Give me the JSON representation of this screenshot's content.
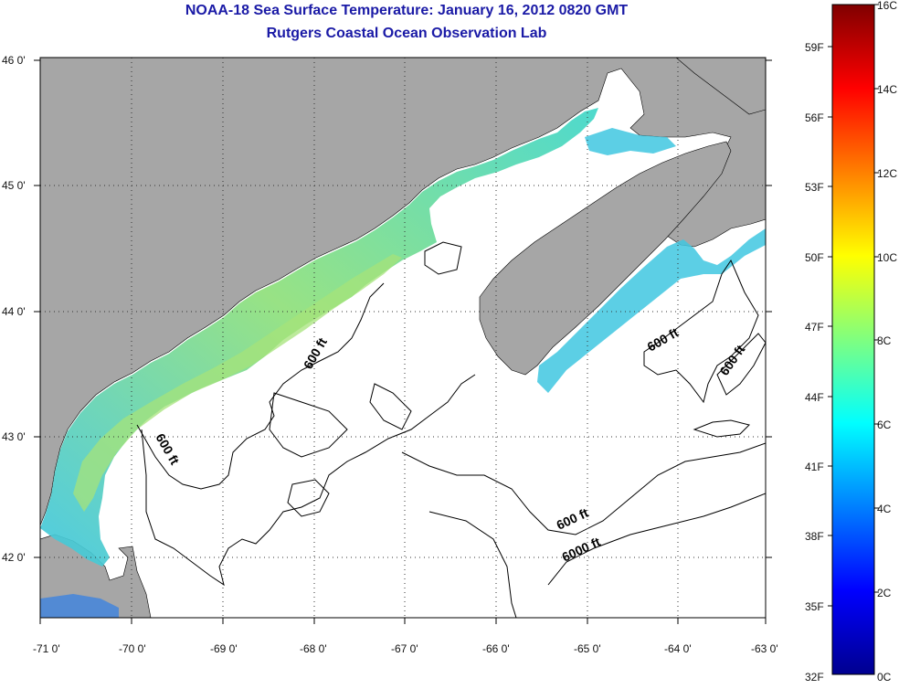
{
  "title": "NOAA-18 Sea Surface Temperature:  January 16, 2012 0820 GMT",
  "subtitle": "Rutgers Coastal Ocean Observation Lab",
  "axes": {
    "lon_ticks": [
      "-71 0'",
      "-70 0'",
      "-69 0'",
      "-68 0'",
      "-67 0'",
      "-66 0'",
      "-65 0'",
      "-64 0'",
      "-63 0'"
    ],
    "lat_ticks": [
      "46 0'",
      "45 0'",
      "44 0'",
      "43 0'",
      "42 0'"
    ]
  },
  "contours": {
    "labels": [
      "600 ft",
      "600 ft",
      "600 ft",
      "600 ft",
      "600 ft",
      "6000 ft"
    ]
  },
  "colorbar": {
    "celsius": [
      "16C",
      "14C",
      "12C",
      "10C",
      "8C",
      "6C",
      "4C",
      "2C",
      "0C"
    ],
    "fahrenheit": [
      "59F",
      "56F",
      "53F",
      "50F",
      "47F",
      "44F",
      "41F",
      "38F",
      "35F",
      "32F"
    ]
  },
  "colors": {
    "land": "#a6a6a6",
    "ocean": "#ffffff",
    "title": "#1a1aa6",
    "sst_warm": "#9be06a",
    "sst_mid": "#3fd6c9",
    "sst_cool": "#1e8cf0"
  }
}
